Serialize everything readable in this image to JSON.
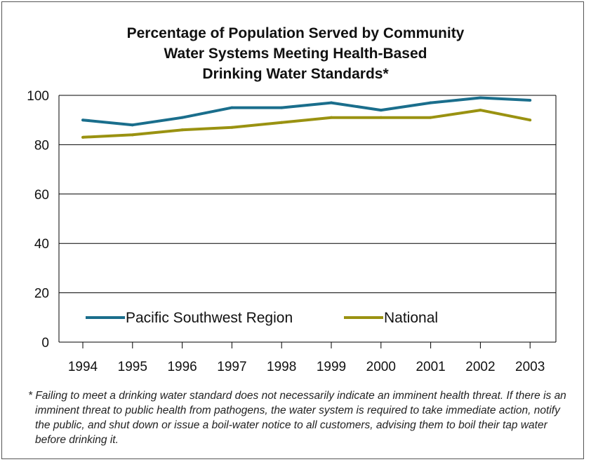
{
  "chart_data": {
    "type": "line",
    "title_lines": [
      "Percentage of Population Served by Community",
      "Water Systems Meeting Health-Based",
      "Drinking Water Standards*"
    ],
    "x": [
      "1994",
      "1995",
      "1996",
      "1997",
      "1998",
      "1999",
      "2000",
      "2001",
      "2002",
      "2003"
    ],
    "series": [
      {
        "name": "Pacific Southwest Region",
        "color": "#1a6e8c",
        "values": [
          90,
          88,
          91,
          95,
          95,
          97,
          94,
          97,
          99,
          98
        ]
      },
      {
        "name": "National",
        "color": "#9a9211",
        "values": [
          83,
          84,
          86,
          87,
          89,
          91,
          91,
          91,
          94,
          90
        ]
      }
    ],
    "ylim": [
      0,
      100
    ],
    "yticks": [
      "0",
      "20",
      "40",
      "60",
      "80",
      "100"
    ],
    "grid": true,
    "legend_position": "bottom-inside"
  },
  "footnote": "* Failing to meet a drinking water standard does not necessarily indicate an imminent health threat. If there is an imminent threat to public health from pathogens, the water system is required to take immediate action, notify the public, and shut down or issue a boil-water notice to all customers, advising them to boil their tap water before drinking it."
}
